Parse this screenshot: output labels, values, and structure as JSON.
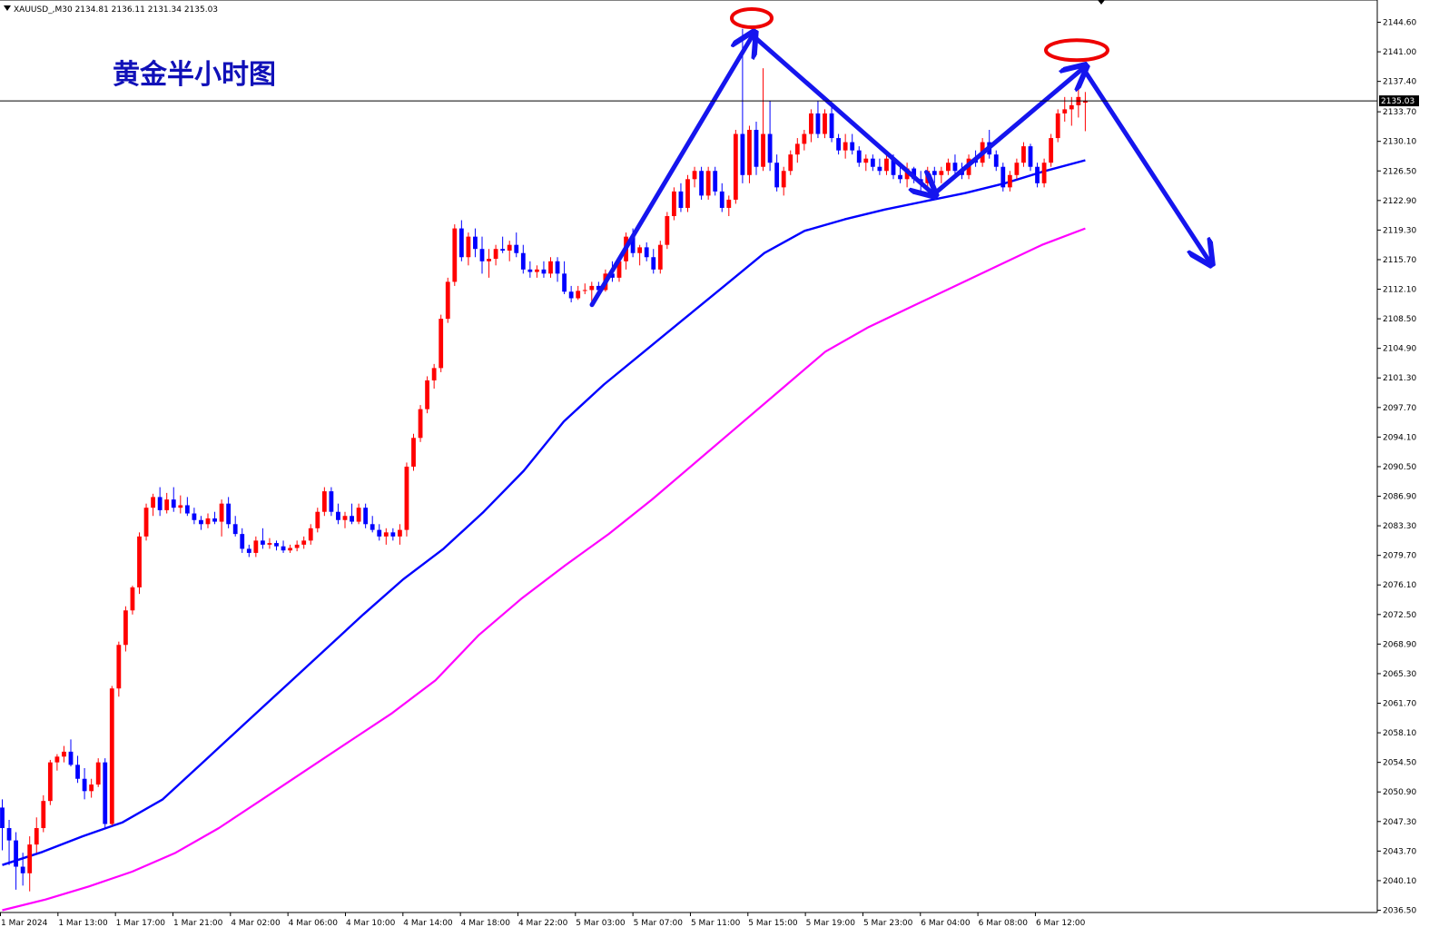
{
  "header": {
    "symbol_line": "XAUUSD_,M30  2134.81 2136.11 2131.34 2135.03"
  },
  "annotation": {
    "title": "黄金半小时图"
  },
  "colors": {
    "bull": "#ff0000",
    "bear": "#0000ff",
    "ma_fast": "#0000ff",
    "ma_slow": "#ff00ff",
    "arrow": "#1515ee",
    "ellipse": "#ee0000",
    "current_price_bg": "#000000"
  },
  "chart_data": {
    "type": "candlestick",
    "timeframe": "M30",
    "ylim": [
      2035.5,
      2146.2
    ],
    "price_ticks": [
      "2144.60",
      "2141.00",
      "2137.40",
      "2133.70",
      "2130.10",
      "2126.50",
      "2122.90",
      "2119.30",
      "2115.70",
      "2112.10",
      "2108.50",
      "2104.90",
      "2101.30",
      "2097.70",
      "2094.10",
      "2090.50",
      "2086.90",
      "2083.30",
      "2079.70",
      "2076.10",
      "2072.50",
      "2068.90",
      "2065.30",
      "2061.70",
      "2058.10",
      "2054.50",
      "2050.90",
      "2047.30",
      "2043.70",
      "2040.10",
      "2036.50"
    ],
    "time_ticks": [
      "1 Mar 2024",
      "1 Mar 13:00",
      "1 Mar 17:00",
      "1 Mar 21:00",
      "4 Mar 02:00",
      "4 Mar 06:00",
      "4 Mar 10:00",
      "4 Mar 14:00",
      "4 Mar 18:00",
      "4 Mar 22:00",
      "5 Mar 03:00",
      "5 Mar 07:00",
      "5 Mar 11:00",
      "5 Mar 15:00",
      "5 Mar 19:00",
      "5 Mar 23:00",
      "6 Mar 04:00",
      "6 Mar 08:00",
      "6 Mar 12:00"
    ],
    "current_price": "2135.03",
    "candles": [
      [
        2049.0,
        2050.0,
        2043.8,
        2046.5
      ],
      [
        2046.5,
        2047.5,
        2042.0,
        2045.0
      ],
      [
        2045.0,
        2046.0,
        2039.0,
        2041.8
      ],
      [
        2041.8,
        2043.5,
        2039.5,
        2041.0
      ],
      [
        2041.0,
        2045.5,
        2038.8,
        2044.5
      ],
      [
        2044.5,
        2047.8,
        2043.5,
        2046.5
      ],
      [
        2046.5,
        2050.5,
        2046.0,
        2049.8
      ],
      [
        2049.8,
        2054.8,
        2049.3,
        2054.5
      ],
      [
        2054.5,
        2055.5,
        2053.5,
        2055.2
      ],
      [
        2055.2,
        2056.5,
        2054.5,
        2055.8
      ],
      [
        2055.8,
        2057.3,
        2054.0,
        2054.2
      ],
      [
        2054.2,
        2055.3,
        2052.0,
        2052.5
      ],
      [
        2052.5,
        2053.8,
        2050.0,
        2051.0
      ],
      [
        2051.0,
        2052.5,
        2050.2,
        2051.8
      ],
      [
        2051.8,
        2055.0,
        2051.5,
        2054.5
      ],
      [
        2054.5,
        2055.0,
        2046.5,
        2047.0
      ],
      [
        2047.0,
        2063.8,
        2046.8,
        2063.5
      ],
      [
        2063.5,
        2069.2,
        2062.5,
        2068.8
      ],
      [
        2068.8,
        2073.5,
        2068.0,
        2073.0
      ],
      [
        2073.0,
        2076.0,
        2072.5,
        2075.8
      ],
      [
        2075.8,
        2082.5,
        2075.0,
        2082.0
      ],
      [
        2082.0,
        2086.0,
        2081.5,
        2085.5
      ],
      [
        2085.5,
        2087.2,
        2084.5,
        2086.8
      ],
      [
        2086.8,
        2088.0,
        2084.5,
        2085.2
      ],
      [
        2085.2,
        2087.3,
        2084.8,
        2086.5
      ],
      [
        2086.5,
        2088.0,
        2085.0,
        2085.5
      ],
      [
        2085.5,
        2087.0,
        2084.8,
        2085.8
      ],
      [
        2085.8,
        2086.8,
        2084.5,
        2084.8
      ],
      [
        2084.8,
        2085.5,
        2083.5,
        2084.0
      ],
      [
        2084.0,
        2084.5,
        2082.8,
        2083.5
      ],
      [
        2083.5,
        2084.8,
        2083.0,
        2084.2
      ],
      [
        2084.2,
        2085.0,
        2083.5,
        2083.8
      ],
      [
        2083.8,
        2086.5,
        2082.0,
        2086.0
      ],
      [
        2086.0,
        2086.8,
        2083.0,
        2083.5
      ],
      [
        2083.5,
        2084.5,
        2082.0,
        2082.3
      ],
      [
        2082.3,
        2083.0,
        2080.0,
        2080.5
      ],
      [
        2080.5,
        2081.0,
        2079.5,
        2080.0
      ],
      [
        2080.0,
        2082.0,
        2079.5,
        2081.5
      ],
      [
        2081.5,
        2083.0,
        2080.5,
        2081.0
      ],
      [
        2081.0,
        2081.8,
        2080.5,
        2081.2
      ],
      [
        2081.2,
        2081.5,
        2080.3,
        2080.8
      ],
      [
        2080.8,
        2081.5,
        2080.0,
        2080.3
      ],
      [
        2080.3,
        2081.0,
        2080.0,
        2080.6
      ],
      [
        2080.6,
        2081.5,
        2080.2,
        2081.0
      ],
      [
        2081.0,
        2082.0,
        2080.5,
        2081.5
      ],
      [
        2081.5,
        2083.5,
        2081.0,
        2083.0
      ],
      [
        2083.0,
        2085.5,
        2082.5,
        2085.0
      ],
      [
        2085.0,
        2088.0,
        2084.5,
        2087.5
      ],
      [
        2087.5,
        2088.0,
        2084.5,
        2085.0
      ],
      [
        2085.0,
        2086.0,
        2083.5,
        2084.0
      ],
      [
        2084.0,
        2085.0,
        2083.0,
        2084.5
      ],
      [
        2084.5,
        2086.0,
        2083.5,
        2083.8
      ],
      [
        2083.8,
        2086.0,
        2083.5,
        2085.5
      ],
      [
        2085.5,
        2086.0,
        2083.0,
        2083.5
      ],
      [
        2083.5,
        2084.5,
        2082.5,
        2082.8
      ],
      [
        2082.8,
        2083.5,
        2081.5,
        2082.0
      ],
      [
        2082.0,
        2083.0,
        2081.0,
        2082.5
      ],
      [
        2082.5,
        2083.0,
        2081.5,
        2082.0
      ],
      [
        2082.0,
        2083.5,
        2081.0,
        2082.8
      ],
      [
        2082.8,
        2091.0,
        2082.0,
        2090.5
      ],
      [
        2090.5,
        2094.5,
        2090.0,
        2094.0
      ],
      [
        2094.0,
        2098.0,
        2093.5,
        2097.5
      ],
      [
        2097.5,
        2101.5,
        2097.0,
        2101.0
      ],
      [
        2101.0,
        2103.0,
        2100.0,
        2102.5
      ],
      [
        2102.5,
        2109.0,
        2102.0,
        2108.5
      ],
      [
        2108.5,
        2113.5,
        2108.0,
        2113.0
      ],
      [
        2113.0,
        2120.0,
        2112.5,
        2119.5
      ],
      [
        2119.5,
        2120.5,
        2115.5,
        2116.0
      ],
      [
        2116.0,
        2119.0,
        2115.0,
        2118.5
      ],
      [
        2118.5,
        2119.5,
        2116.0,
        2117.0
      ],
      [
        2117.0,
        2118.5,
        2114.0,
        2115.5
      ],
      [
        2115.5,
        2117.0,
        2113.5,
        2115.8
      ],
      [
        2115.8,
        2117.5,
        2115.0,
        2117.0
      ],
      [
        2117.0,
        2118.5,
        2116.5,
        2116.8
      ],
      [
        2116.8,
        2118.0,
        2115.5,
        2117.5
      ],
      [
        2117.5,
        2119.0,
        2116.0,
        2116.5
      ],
      [
        2116.5,
        2117.5,
        2114.0,
        2114.5
      ],
      [
        2114.5,
        2115.5,
        2113.5,
        2114.2
      ],
      [
        2114.2,
        2115.0,
        2113.5,
        2114.5
      ],
      [
        2114.5,
        2115.5,
        2113.5,
        2114.0
      ],
      [
        2114.0,
        2116.0,
        2113.5,
        2115.5
      ],
      [
        2115.5,
        2116.0,
        2113.0,
        2114.0
      ],
      [
        2114.0,
        2115.5,
        2111.5,
        2111.8
      ],
      [
        2111.8,
        2112.5,
        2110.5,
        2111.0
      ],
      [
        2111.0,
        2112.5,
        2110.8,
        2111.9
      ],
      [
        2111.9,
        2112.8,
        2111.5,
        2112.0
      ],
      [
        2112.0,
        2113.0,
        2110.0,
        2112.5
      ],
      [
        2112.5,
        2113.0,
        2111.5,
        2112.0
      ],
      [
        2112.0,
        2114.5,
        2111.8,
        2114.0
      ],
      [
        2114.0,
        2115.5,
        2113.0,
        2113.5
      ],
      [
        2113.5,
        2116.0,
        2113.0,
        2115.5
      ],
      [
        2115.5,
        2119.0,
        2114.5,
        2118.5
      ],
      [
        2118.5,
        2119.5,
        2116.0,
        2116.5
      ],
      [
        2116.5,
        2117.5,
        2115.0,
        2117.2
      ],
      [
        2117.2,
        2117.8,
        2115.5,
        2116.0
      ],
      [
        2116.0,
        2117.0,
        2114.0,
        2114.5
      ],
      [
        2114.5,
        2118.0,
        2114.0,
        2117.5
      ],
      [
        2117.5,
        2121.5,
        2117.0,
        2121.0
      ],
      [
        2121.0,
        2124.5,
        2120.5,
        2124.0
      ],
      [
        2124.0,
        2125.0,
        2121.5,
        2122.0
      ],
      [
        2122.0,
        2126.0,
        2121.5,
        2125.5
      ],
      [
        2125.5,
        2127.0,
        2124.5,
        2126.5
      ],
      [
        2126.5,
        2127.0,
        2123.0,
        2123.5
      ],
      [
        2123.5,
        2127.0,
        2123.0,
        2126.5
      ],
      [
        2126.5,
        2127.0,
        2123.5,
        2124.0
      ],
      [
        2124.0,
        2125.0,
        2121.5,
        2122.0
      ],
      [
        2122.0,
        2123.5,
        2121.0,
        2123.0
      ],
      [
        2123.0,
        2131.5,
        2122.5,
        2131.0
      ],
      [
        2131.0,
        2143.8,
        2125.0,
        2126.0
      ],
      [
        2126.0,
        2132.0,
        2125.0,
        2131.5
      ],
      [
        2131.5,
        2132.5,
        2126.0,
        2127.0
      ],
      [
        2127.0,
        2139.0,
        2126.5,
        2131.0
      ],
      [
        2131.0,
        2135.0,
        2126.5,
        2127.5
      ],
      [
        2127.5,
        2128.5,
        2124.0,
        2124.5
      ],
      [
        2124.5,
        2127.0,
        2123.5,
        2126.5
      ],
      [
        2126.5,
        2129.0,
        2126.0,
        2128.5
      ],
      [
        2128.5,
        2130.5,
        2127.5,
        2129.8
      ],
      [
        2129.8,
        2131.5,
        2129.0,
        2131.0
      ],
      [
        2131.0,
        2134.0,
        2130.0,
        2133.5
      ],
      [
        2133.5,
        2135.0,
        2130.5,
        2131.0
      ],
      [
        2131.0,
        2134.0,
        2130.5,
        2133.5
      ],
      [
        2133.5,
        2134.5,
        2130.0,
        2130.5
      ],
      [
        2130.5,
        2131.0,
        2128.5,
        2129.0
      ],
      [
        2129.0,
        2131.0,
        2128.0,
        2130.0
      ],
      [
        2130.0,
        2131.0,
        2128.5,
        2129.0
      ],
      [
        2129.0,
        2129.5,
        2127.0,
        2127.5
      ],
      [
        2127.5,
        2128.5,
        2126.5,
        2128.0
      ],
      [
        2128.0,
        2128.5,
        2126.5,
        2127.0
      ],
      [
        2127.0,
        2128.0,
        2126.0,
        2126.5
      ],
      [
        2126.5,
        2128.5,
        2126.0,
        2128.0
      ],
      [
        2128.0,
        2128.5,
        2125.5,
        2126.0
      ],
      [
        2126.0,
        2127.0,
        2125.0,
        2125.5
      ],
      [
        2125.5,
        2127.5,
        2124.5,
        2126.8
      ],
      [
        2126.8,
        2127.0,
        2125.0,
        2125.5
      ],
      [
        2125.5,
        2126.5,
        2124.0,
        2125.0
      ],
      [
        2125.0,
        2127.0,
        2124.5,
        2126.5
      ],
      [
        2126.5,
        2127.0,
        2125.0,
        2126.0
      ],
      [
        2126.0,
        2127.0,
        2125.0,
        2126.5
      ],
      [
        2126.5,
        2128.0,
        2126.0,
        2127.5
      ],
      [
        2127.5,
        2128.5,
        2126.0,
        2126.5
      ],
      [
        2126.5,
        2127.5,
        2125.5,
        2126.0
      ],
      [
        2126.0,
        2128.5,
        2125.5,
        2128.0
      ],
      [
        2128.0,
        2129.0,
        2127.0,
        2127.5
      ],
      [
        2127.5,
        2130.5,
        2127.0,
        2130.0
      ],
      [
        2130.0,
        2131.5,
        2128.0,
        2128.5
      ],
      [
        2128.5,
        2129.0,
        2126.5,
        2127.0
      ],
      [
        2127.0,
        2127.5,
        2124.0,
        2124.5
      ],
      [
        2124.5,
        2126.5,
        2124.0,
        2126.0
      ],
      [
        2126.0,
        2128.0,
        2125.5,
        2127.5
      ],
      [
        2127.5,
        2130.0,
        2127.0,
        2129.5
      ],
      [
        2129.5,
        2129.8,
        2126.5,
        2127.0
      ],
      [
        2127.0,
        2127.5,
        2124.5,
        2125.0
      ],
      [
        2125.0,
        2128.0,
        2124.5,
        2127.5
      ],
      [
        2127.5,
        2131.0,
        2127.0,
        2130.5
      ],
      [
        2130.5,
        2134.0,
        2130.0,
        2133.5
      ],
      [
        2133.5,
        2135.5,
        2132.5,
        2134.0
      ],
      [
        2134.0,
        2135.5,
        2132.0,
        2134.5
      ],
      [
        2134.5,
        2136.5,
        2133.0,
        2135.5
      ],
      [
        2134.81,
        2136.11,
        2131.34,
        2135.03
      ]
    ],
    "ma_fast": {
      "values": [
        2042.0,
        2043.6,
        2045.5,
        2047.2,
        2050.0,
        2054.5,
        2059.0,
        2063.5,
        2068.0,
        2072.5,
        2076.8,
        2080.5,
        2085.0,
        2090.0,
        2096.0,
        2100.5,
        2104.5,
        2108.5,
        2112.5,
        2116.5,
        2119.2,
        2120.6,
        2121.8,
        2122.8,
        2123.8,
        2125.0,
        2126.5,
        2127.8
      ]
    },
    "ma_slow": {
      "values": [
        2036.5,
        2037.8,
        2039.4,
        2041.2,
        2043.5,
        2046.5,
        2050.0,
        2053.5,
        2057.0,
        2060.5,
        2064.5,
        2070.0,
        2074.5,
        2078.5,
        2082.3,
        2086.5,
        2091.0,
        2095.5,
        2100.0,
        2104.5,
        2107.5,
        2110.0,
        2112.5,
        2115.0,
        2117.5,
        2119.5
      ]
    }
  }
}
